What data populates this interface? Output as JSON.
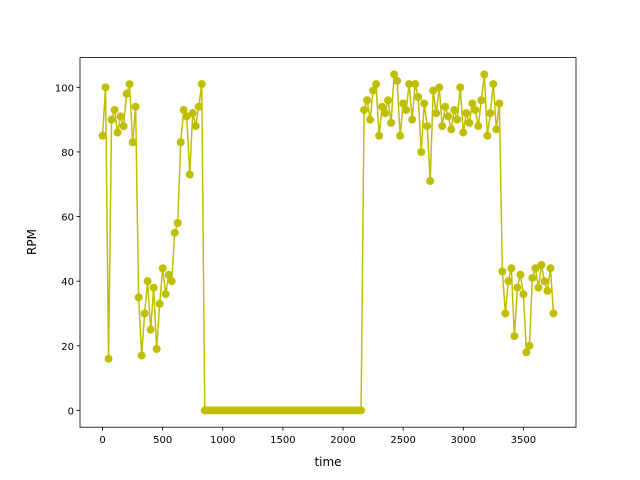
{
  "chart_data": {
    "type": "line",
    "xlabel": "time",
    "ylabel": "RPM",
    "x": [
      0,
      25,
      50,
      75,
      100,
      125,
      150,
      175,
      200,
      225,
      250,
      275,
      300,
      325,
      350,
      375,
      400,
      425,
      450,
      475,
      500,
      525,
      550,
      575,
      600,
      625,
      650,
      675,
      700,
      725,
      750,
      775,
      800,
      825,
      850,
      875,
      900,
      925,
      950,
      975,
      1000,
      1025,
      1050,
      1075,
      1100,
      1125,
      1150,
      1175,
      1200,
      1225,
      1250,
      1275,
      1300,
      1325,
      1350,
      1375,
      1400,
      1425,
      1450,
      1475,
      1500,
      1525,
      1550,
      1575,
      1600,
      1625,
      1650,
      1675,
      1700,
      1725,
      1750,
      1775,
      1800,
      1825,
      1850,
      1875,
      1900,
      1925,
      1950,
      1975,
      2000,
      2025,
      2050,
      2075,
      2100,
      2125,
      2150,
      2175,
      2200,
      2225,
      2250,
      2275,
      2300,
      2325,
      2350,
      2375,
      2400,
      2425,
      2450,
      2475,
      2500,
      2525,
      2550,
      2575,
      2600,
      2625,
      2650,
      2675,
      2700,
      2725,
      2750,
      2775,
      2800,
      2825,
      2850,
      2875,
      2900,
      2925,
      2950,
      2975,
      3000,
      3025,
      3050,
      3075,
      3100,
      3125,
      3150,
      3175,
      3200,
      3225,
      3250,
      3275,
      3300,
      3325,
      3350,
      3375,
      3400,
      3425,
      3450,
      3475,
      3500,
      3525,
      3550,
      3575,
      3600,
      3625,
      3650,
      3675,
      3700,
      3725,
      3750
    ],
    "series": [
      {
        "color": "#bfbf00",
        "values": [
          85,
          100,
          16,
          90,
          93,
          86,
          91,
          88,
          98,
          101,
          83,
          94,
          35,
          17,
          30,
          40,
          25,
          38,
          19,
          33,
          44,
          36,
          42,
          40,
          55,
          58,
          83,
          93,
          91,
          73,
          92,
          88,
          94,
          101,
          0,
          0,
          0,
          0,
          0,
          0,
          0,
          0,
          0,
          0,
          0,
          0,
          0,
          0,
          0,
          0,
          0,
          0,
          0,
          0,
          0,
          0,
          0,
          0,
          0,
          0,
          0,
          0,
          0,
          0,
          0,
          0,
          0,
          0,
          0,
          0,
          0,
          0,
          0,
          0,
          0,
          0,
          0,
          0,
          0,
          0,
          0,
          0,
          0,
          0,
          0,
          0,
          0,
          93,
          96,
          90,
          99,
          101,
          85,
          94,
          92,
          96,
          89,
          104,
          102,
          85,
          95,
          93,
          101,
          90,
          101,
          97,
          80,
          95,
          88,
          71,
          99,
          92,
          100,
          88,
          94,
          91,
          87,
          93,
          90,
          100,
          86,
          92,
          89,
          95,
          93,
          88,
          96,
          104,
          85,
          92,
          101,
          87,
          95,
          43,
          30,
          40,
          44,
          23,
          38,
          42,
          36,
          18,
          20,
          41,
          44,
          38,
          45,
          40,
          37,
          44,
          30
        ]
      }
    ],
    "xlim": [
      -187.5,
      3937.5
    ],
    "ylim": [
      -5.2,
      109.2
    ],
    "xticks": [
      0,
      500,
      1000,
      1500,
      2000,
      2500,
      3000,
      3500
    ],
    "yticks": [
      0,
      20,
      40,
      60,
      80,
      100
    ]
  }
}
